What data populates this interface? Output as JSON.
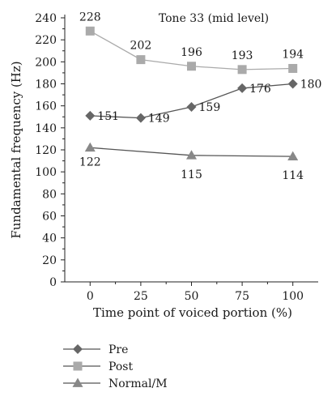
{
  "chart_data": {
    "type": "line",
    "title": "Tone 33 (mid level)",
    "xlabel": "Time point of voiced portion (%)",
    "ylabel": "Fundamental frequency (Hz)",
    "x": [
      0,
      25,
      50,
      75,
      100
    ],
    "x_tick_labels": [
      "0",
      "25",
      "50",
      "75",
      "100"
    ],
    "xlim": [
      -12.5,
      112.5
    ],
    "ylim": [
      0,
      240
    ],
    "y_ticks": [
      0,
      20,
      40,
      60,
      80,
      100,
      120,
      140,
      160,
      180,
      200,
      220,
      240
    ],
    "y_tick_labels": [
      "0",
      "20",
      "40",
      "60",
      "80",
      "100",
      "120",
      "140",
      "160",
      "180",
      "200",
      "220",
      "240"
    ],
    "grid": false,
    "legend_position": "bottom-left",
    "series": [
      {
        "name": "Pre",
        "marker": "diamond",
        "color": "#666666",
        "values": [
          151,
          149,
          159,
          176,
          180
        ],
        "labels": [
          "151",
          "149",
          "159",
          "176",
          "180"
        ]
      },
      {
        "name": "Post",
        "marker": "square",
        "color": "#aaaaaa",
        "values": [
          228,
          202,
          196,
          193,
          194
        ],
        "labels": [
          "228",
          "202",
          "196",
          "193",
          "194"
        ]
      },
      {
        "name": "Normal/M",
        "marker": "triangle",
        "color": "#888888",
        "values": [
          122,
          null,
          115,
          null,
          114
        ],
        "labels": [
          "122",
          "",
          "115",
          "",
          "114"
        ]
      }
    ]
  }
}
